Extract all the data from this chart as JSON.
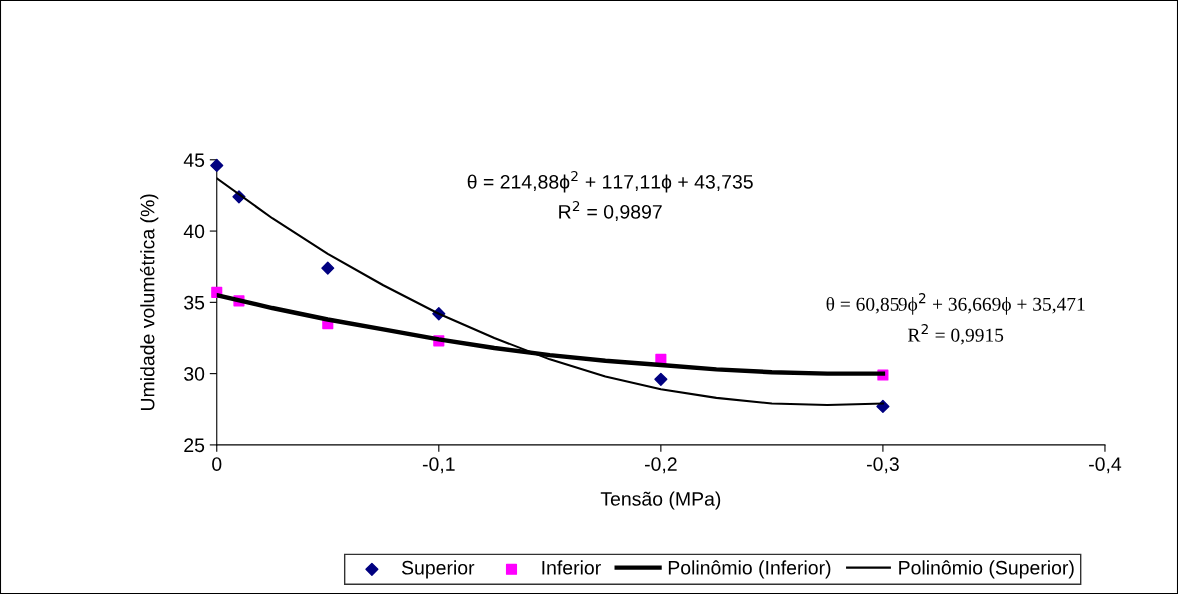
{
  "chart_data": {
    "type": "scatter",
    "xlabel": "Tensão (MPa)",
    "ylabel": "Umidade volumétrica (%)",
    "xlim": [
      0,
      -0.4
    ],
    "xticks": [
      0,
      {
        "value": -0.1,
        "label": "-0,1"
      },
      {
        "value": -0.2,
        "label": "-0,2"
      },
      {
        "value": -0.3,
        "label": "-0,3"
      },
      {
        "value": -0.4,
        "label": "-0,4"
      }
    ],
    "ylim": [
      25,
      45
    ],
    "yticks": [
      25,
      30,
      35,
      40,
      45
    ],
    "grid": false,
    "legend": "bottom",
    "series": [
      {
        "name": "Superior",
        "marker": "diamond",
        "color": "#000080",
        "x": [
          0,
          -0.01,
          -0.05,
          -0.1,
          -0.2,
          -0.3
        ],
        "values": [
          44.6,
          42.4,
          37.4,
          34.2,
          29.6,
          27.7
        ]
      },
      {
        "name": "Inferior",
        "marker": "square",
        "color": "#ff00ff",
        "x": [
          0,
          -0.01,
          -0.05,
          -0.1,
          -0.2,
          -0.3
        ],
        "values": [
          35.7,
          35.1,
          33.5,
          32.3,
          31.0,
          29.9
        ]
      },
      {
        "name": "Polinômio (Inferior)",
        "type": "line",
        "marker": "none",
        "line_style": "solid",
        "color": "#000000",
        "x": [
          0,
          -0.025,
          -0.05,
          -0.075,
          -0.1,
          -0.125,
          -0.15,
          -0.175,
          -0.2,
          -0.225,
          -0.25,
          -0.275,
          -0.3
        ],
        "values": [
          35.5,
          34.6,
          33.8,
          33.1,
          32.4,
          31.8,
          31.3,
          30.9,
          30.6,
          30.3,
          30.1,
          30.0,
          30.0
        ]
      },
      {
        "name": "Polinômio (Superior)",
        "type": "line",
        "marker": "none",
        "line_style": "solid",
        "color": "#000000",
        "x": [
          0,
          -0.025,
          -0.05,
          -0.075,
          -0.1,
          -0.125,
          -0.15,
          -0.175,
          -0.2,
          -0.225,
          -0.25,
          -0.275,
          -0.3
        ],
        "values": [
          43.7,
          40.9,
          38.4,
          36.2,
          34.2,
          32.5,
          31.0,
          29.8,
          28.9,
          28.3,
          27.9,
          27.8,
          27.9
        ]
      }
    ],
    "annotations": [
      "θ = 214,88ϕ$^{2}$ + 117,11ϕ + 43,735\nR$^{2}$ = 0,9897",
      "θ = 60,859ϕ$^{2}$ + 36,669ϕ + 35,471\nR$^{2}$ = 0,9915"
    ]
  }
}
